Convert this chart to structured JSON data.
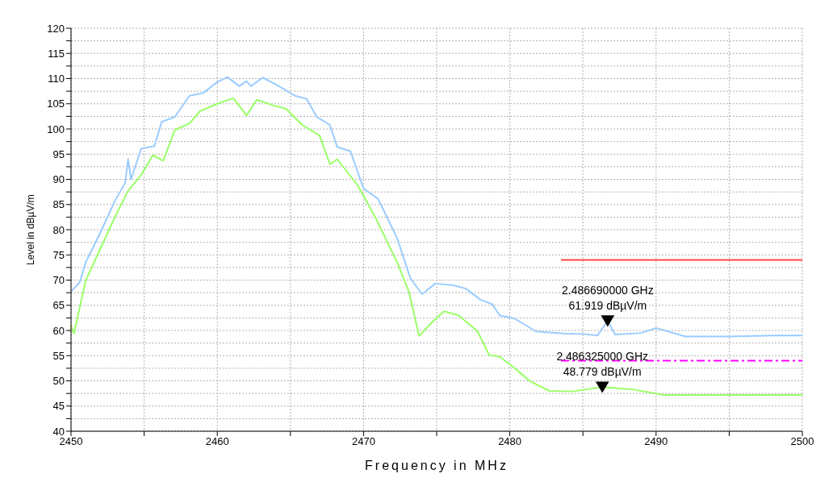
{
  "chart_data": {
    "type": "line",
    "xlabel": "Frequency in MHz",
    "ylabel": "Level in dBµV/m",
    "xlim": [
      2450,
      2500
    ],
    "xticks": [
      2450,
      {
        "value": 2455,
        "label": null
      },
      2460,
      {
        "value": 2465,
        "label": null
      },
      2470,
      {
        "value": 2475,
        "label": null
      },
      2480,
      {
        "value": 2485,
        "label": null
      },
      2490,
      {
        "value": 2495,
        "label": null
      },
      2500
    ],
    "ylim": [
      40,
      120
    ],
    "yticks": [
      40,
      {
        "value": 42.5,
        "label": null
      },
      45,
      {
        "value": 47.5,
        "label": null
      },
      50,
      {
        "value": 52.5,
        "label": null
      },
      55,
      {
        "value": 57.5,
        "label": null
      },
      60,
      {
        "value": 62.5,
        "label": null
      },
      65,
      {
        "value": 67.5,
        "label": null
      },
      70,
      {
        "value": 72.5,
        "label": null
      },
      75,
      {
        "value": 77.5,
        "label": null
      },
      80,
      {
        "value": 82.5,
        "label": null
      },
      85,
      {
        "value": 87.5,
        "label": null
      },
      90,
      {
        "value": 92.5,
        "label": null
      },
      95,
      {
        "value": 97.5,
        "label": null
      },
      100,
      {
        "value": 102.5,
        "label": null
      },
      105,
      {
        "value": 107.5,
        "label": null
      },
      110,
      {
        "value": 112.5,
        "label": null
      },
      115,
      {
        "value": 117.5,
        "label": null
      },
      120
    ],
    "grid": true,
    "legend": false,
    "marker": "none",
    "series": [
      {
        "color": "#99ccff",
        "x": [
          2450,
          2450.6,
          2451,
          2452,
          2453,
          2453.7,
          2453.9,
          2454.1,
          2454.8,
          2455.7,
          2456.2,
          2457.1,
          2458.1,
          2459,
          2460,
          2460.7,
          2461.5,
          2462,
          2462.3,
          2463.1,
          2464.1,
          2465.3,
          2466.1,
          2466.8,
          2467.7,
          2468.2,
          2469.1,
          2470,
          2471,
          2472.3,
          2473.2,
          2474,
          2474.9,
          2476.1,
          2477,
          2478,
          2478.8,
          2479.3,
          2480.3,
          2481.8,
          2483.7,
          2485,
          2486,
          2486.69,
          2487.2,
          2489,
          2490,
          2492,
          2495,
          2498,
          2500
        ],
        "values": [
          67.7,
          69.6,
          73.5,
          79.4,
          85.7,
          89.3,
          94,
          90,
          96.1,
          96.6,
          101.4,
          102.4,
          106.6,
          107.1,
          109.3,
          110.3,
          108.5,
          109.5,
          108.5,
          110.2,
          108.7,
          106.6,
          106,
          102.4,
          100.8,
          96.4,
          95.6,
          88.2,
          86.1,
          78.3,
          70.4,
          67.2,
          69.3,
          69,
          68.3,
          66.1,
          65.2,
          63,
          62.4,
          59.8,
          59.4,
          59.3,
          59,
          61.919,
          59.2,
          59.5,
          60.5,
          58.8,
          58.8,
          59,
          59
        ]
      },
      {
        "color": "#99ff66",
        "x": [
          2450,
          2450.2,
          2451,
          2452,
          2453,
          2453.9,
          2454.8,
          2455.6,
          2456.3,
          2457.1,
          2458.1,
          2458.8,
          2460,
          2461.1,
          2462,
          2462.7,
          2463.8,
          2464.7,
          2465.8,
          2467,
          2467.7,
          2468.2,
          2469.6,
          2470.8,
          2472.3,
          2473.1,
          2473.8,
          2474.6,
          2475.5,
          2476.5,
          2477.8,
          2478.6,
          2479.3,
          2480.3,
          2481.4,
          2482.7,
          2484.3,
          2486.325,
          2488.4,
          2490.5,
          2500
        ],
        "values": [
          60.9,
          59.4,
          69.9,
          76.2,
          82.5,
          87.7,
          90.9,
          94.8,
          93.7,
          99.8,
          101.1,
          103.5,
          105,
          106.1,
          102.7,
          105.8,
          104.7,
          104,
          100.8,
          98.7,
          93,
          94,
          88.8,
          82.5,
          73.5,
          67.7,
          58.9,
          61.4,
          63.8,
          63,
          59.8,
          55.1,
          54.8,
          52.6,
          49.9,
          48,
          47.9,
          48.779,
          48.3,
          47.2,
          47.2
        ]
      },
      {
        "color": "#ff4444",
        "x": [
          2483.5,
          2500
        ],
        "values": [
          74,
          74
        ]
      },
      {
        "color": "#ff00ff",
        "line_style": "dashed",
        "x": [
          2483.5,
          2500
        ],
        "values": [
          54,
          54
        ]
      },
      {
        "type": "scatter",
        "marker": "triangle",
        "color": "#000000",
        "x": [
          2486.69
        ],
        "values": [
          61.919
        ]
      },
      {
        "type": "scatter",
        "marker": "triangle",
        "color": "#000000",
        "x": [
          2486.325
        ],
        "values": [
          48.779
        ]
      }
    ],
    "annotations": [
      {
        "text": "2.486690000 GHz\n61.919 dBµV/m",
        "x": 2486.69,
        "y": 61.919
      },
      {
        "text": "2.486325000 GHz\n48.779 dBµV/m",
        "x": 2486.325,
        "y": 48.779
      }
    ]
  }
}
